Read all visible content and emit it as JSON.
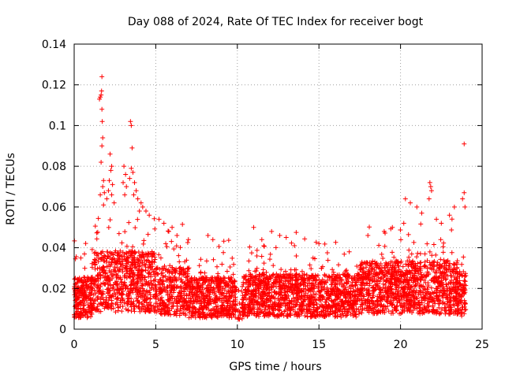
{
  "chart_data": {
    "type": "scatter",
    "title": "Day 088 of 2024, Rate Of TEC Index for receiver bogt",
    "xlabel": "GPS time / hours",
    "ylabel": "ROTI / TECUs",
    "xlim": [
      0,
      25
    ],
    "ylim": [
      0,
      0.14
    ],
    "xticks": [
      0,
      5,
      10,
      15,
      20,
      25
    ],
    "xtick_labels": [
      "0",
      "5",
      "10",
      "15",
      "20",
      "25"
    ],
    "yticks": [
      0,
      0.02,
      0.04,
      0.06,
      0.08,
      0.1,
      0.12,
      0.14
    ],
    "ytick_labels": [
      "0",
      "0.02",
      "0.04",
      "0.06",
      "0.08",
      "0.1",
      "0.12",
      "0.14"
    ],
    "grid": true,
    "marker": "+",
    "marker_color": "#ff0000",
    "series": [
      {
        "name": "ROTI",
        "description": "dense cloud of points between 0 and 24 hours, mostly 0.005-0.035 TECU",
        "points": [
          [
            1.55,
            0.113
          ],
          [
            1.6,
            0.114
          ],
          [
            1.65,
            0.115
          ],
          [
            1.7,
            0.124
          ],
          [
            1.68,
            0.117
          ],
          [
            1.7,
            0.108
          ],
          [
            1.72,
            0.102
          ],
          [
            1.75,
            0.094
          ],
          [
            1.7,
            0.09
          ],
          [
            1.65,
            0.082
          ],
          [
            1.8,
            0.073
          ],
          [
            1.75,
            0.07
          ],
          [
            1.85,
            0.067
          ],
          [
            1.8,
            0.061
          ],
          [
            1.6,
            0.066
          ],
          [
            2.2,
            0.086
          ],
          [
            2.3,
            0.08
          ],
          [
            2.25,
            0.078
          ],
          [
            2.15,
            0.073
          ],
          [
            2.35,
            0.071
          ],
          [
            2.1,
            0.068
          ],
          [
            2.3,
            0.066
          ],
          [
            2.0,
            0.064
          ],
          [
            2.45,
            0.062
          ],
          [
            3.05,
            0.08
          ],
          [
            3.15,
            0.076
          ],
          [
            3.0,
            0.072
          ],
          [
            3.2,
            0.07
          ],
          [
            3.1,
            0.066
          ],
          [
            3.45,
            0.102
          ],
          [
            3.5,
            0.1
          ],
          [
            3.55,
            0.089
          ],
          [
            3.5,
            0.079
          ],
          [
            3.6,
            0.077
          ],
          [
            3.4,
            0.074
          ],
          [
            3.7,
            0.072
          ],
          [
            3.8,
            0.068
          ],
          [
            3.65,
            0.066
          ],
          [
            3.9,
            0.064
          ],
          [
            4.1,
            0.062
          ],
          [
            4.2,
            0.06
          ],
          [
            4.4,
            0.058
          ],
          [
            4.6,
            0.056
          ],
          [
            4.0,
            0.058
          ],
          [
            5.2,
            0.054
          ],
          [
            5.5,
            0.052
          ],
          [
            6.0,
            0.05
          ],
          [
            5.8,
            0.048
          ],
          [
            6.3,
            0.046
          ],
          [
            7.0,
            0.044
          ],
          [
            8.2,
            0.046
          ],
          [
            8.5,
            0.044
          ],
          [
            11.0,
            0.05
          ],
          [
            11.5,
            0.044
          ],
          [
            12.1,
            0.048
          ],
          [
            12.6,
            0.046
          ],
          [
            13.5,
            0.041
          ],
          [
            15.0,
            0.042
          ],
          [
            18.0,
            0.046
          ],
          [
            19.0,
            0.048
          ],
          [
            19.5,
            0.05
          ],
          [
            20.2,
            0.052
          ],
          [
            20.3,
            0.064
          ],
          [
            20.6,
            0.062
          ],
          [
            21.0,
            0.06
          ],
          [
            21.3,
            0.057
          ],
          [
            21.8,
            0.072
          ],
          [
            21.85,
            0.07
          ],
          [
            21.9,
            0.068
          ],
          [
            21.75,
            0.064
          ],
          [
            22.2,
            0.054
          ],
          [
            22.5,
            0.052
          ],
          [
            23.0,
            0.056
          ],
          [
            23.3,
            0.06
          ],
          [
            23.8,
            0.064
          ],
          [
            23.9,
            0.067
          ],
          [
            23.95,
            0.06
          ],
          [
            23.9,
            0.091
          ]
        ]
      }
    ]
  }
}
